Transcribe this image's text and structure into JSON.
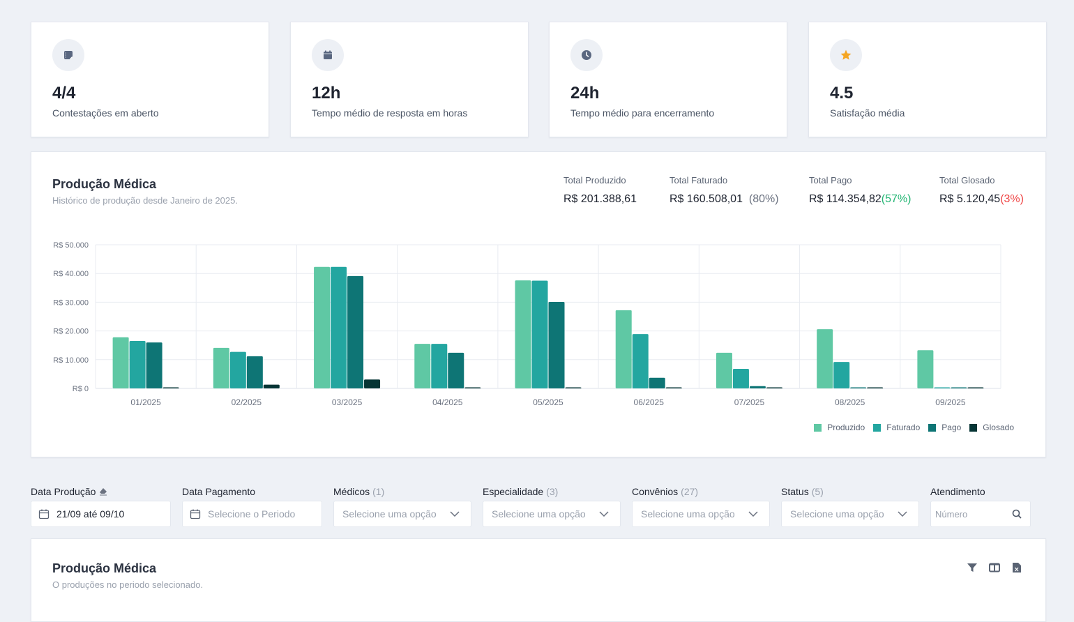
{
  "stats": [
    {
      "value": "4/4",
      "label": "Contestações em aberto",
      "icon": "notepad-icon",
      "icon_color": "#5a6780"
    },
    {
      "value": "12h",
      "label": "Tempo médio de resposta em horas",
      "icon": "calendar-icon",
      "icon_color": "#5a6780"
    },
    {
      "value": "24h",
      "label": "Tempo médio para encerramento",
      "icon": "clock-icon",
      "icon_color": "#5a6780"
    },
    {
      "value": "4.5",
      "label": "Satisfação média",
      "icon": "star-icon",
      "icon_color": "#f5a623"
    }
  ],
  "production": {
    "title": "Produção Médica",
    "subtitle": "Histórico de produção desde Janeiro de 2025.",
    "totals": [
      {
        "label": "Total Produzido",
        "value": "R$ 201.388,61",
        "pct": ""
      },
      {
        "label": "Total Faturado",
        "value": "R$ 160.508,01",
        "pct": "(80%)",
        "pct_color": "neutral"
      },
      {
        "label": "Total Pago",
        "value": "R$ 114.354,82",
        "pct": "(57%)",
        "pct_color": "green"
      },
      {
        "label": "Total Glosado",
        "value": "R$ 5.120,45",
        "pct": "(3%)",
        "pct_color": "red"
      }
    ]
  },
  "chart_data": {
    "type": "bar",
    "title": "",
    "xlabel": "",
    "ylabel": "",
    "ylim": [
      0,
      50000
    ],
    "yticks": [
      0,
      10000,
      20000,
      30000,
      40000,
      50000
    ],
    "ytick_labels": [
      "R$ 0",
      "R$ 10.000",
      "R$ 20.000",
      "R$ 30.000",
      "R$ 40.000",
      "R$ 50.000"
    ],
    "grid": true,
    "legend_position": "bottom-right",
    "categories": [
      "01/2025",
      "02/2025",
      "03/2025",
      "04/2025",
      "05/2025",
      "06/2025",
      "07/2025",
      "08/2025",
      "09/2025"
    ],
    "series": [
      {
        "name": "Produzido",
        "color": "#5fc8a4",
        "values": [
          17800,
          14100,
          42300,
          15500,
          37600,
          27200,
          12400,
          20600,
          13300
        ]
      },
      {
        "name": "Faturado",
        "color": "#23a6a0",
        "values": [
          16500,
          12700,
          42300,
          15500,
          37500,
          18900,
          6800,
          9200,
          100
        ]
      },
      {
        "name": "Pago",
        "color": "#0e7575",
        "values": [
          16000,
          11200,
          39100,
          12400,
          30100,
          3700,
          800,
          200,
          100
        ]
      },
      {
        "name": "Glosado",
        "color": "#063535",
        "values": [
          300,
          1300,
          3100,
          200,
          200,
          200,
          200,
          200,
          100
        ]
      }
    ]
  },
  "filters": {
    "data_producao": {
      "label": "Data Produção",
      "value": "21/09 até 09/10"
    },
    "data_pagamento": {
      "label": "Data Pagamento",
      "placeholder": "Selecione o Periodo"
    },
    "medicos": {
      "label": "Médicos",
      "count": "(1)",
      "placeholder": "Selecione uma opção"
    },
    "especialidade": {
      "label": "Especialidade",
      "count": "(3)",
      "placeholder": "Selecione uma opção"
    },
    "convenios": {
      "label": "Convênios",
      "count": "(27)",
      "placeholder": "Selecione uma opção"
    },
    "status": {
      "label": "Status",
      "count": "(5)",
      "placeholder": "Selecione uma opção"
    },
    "atendimento": {
      "label": "Atendimento",
      "placeholder": "Número"
    }
  },
  "table": {
    "title": "Produção Médica",
    "subtitle": "O produções no periodo selecionado."
  }
}
